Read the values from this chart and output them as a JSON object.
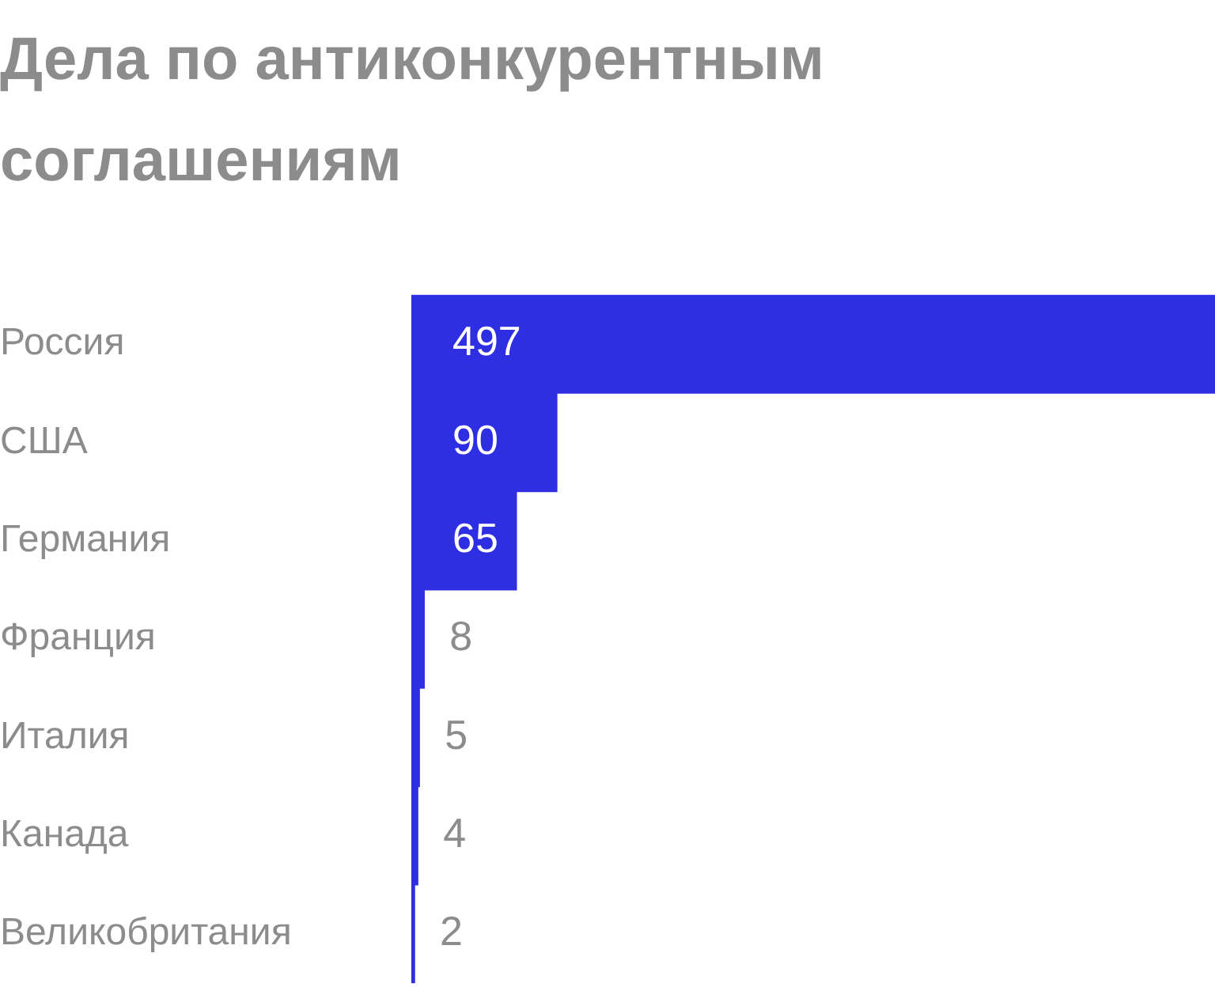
{
  "chart_data": {
    "type": "bar",
    "orientation": "horizontal",
    "title": "Дела по антиконкурентным соглашениям",
    "categories": [
      "Россия",
      "США",
      "Германия",
      "Франция",
      "Италия",
      "Канада",
      "Великобритания"
    ],
    "values": [
      497,
      90,
      65,
      8,
      5,
      4,
      2
    ],
    "color": "#2e2ee3",
    "xlim": [
      0,
      497
    ],
    "data_labels": true,
    "tick_labels": "y",
    "legend": false
  }
}
